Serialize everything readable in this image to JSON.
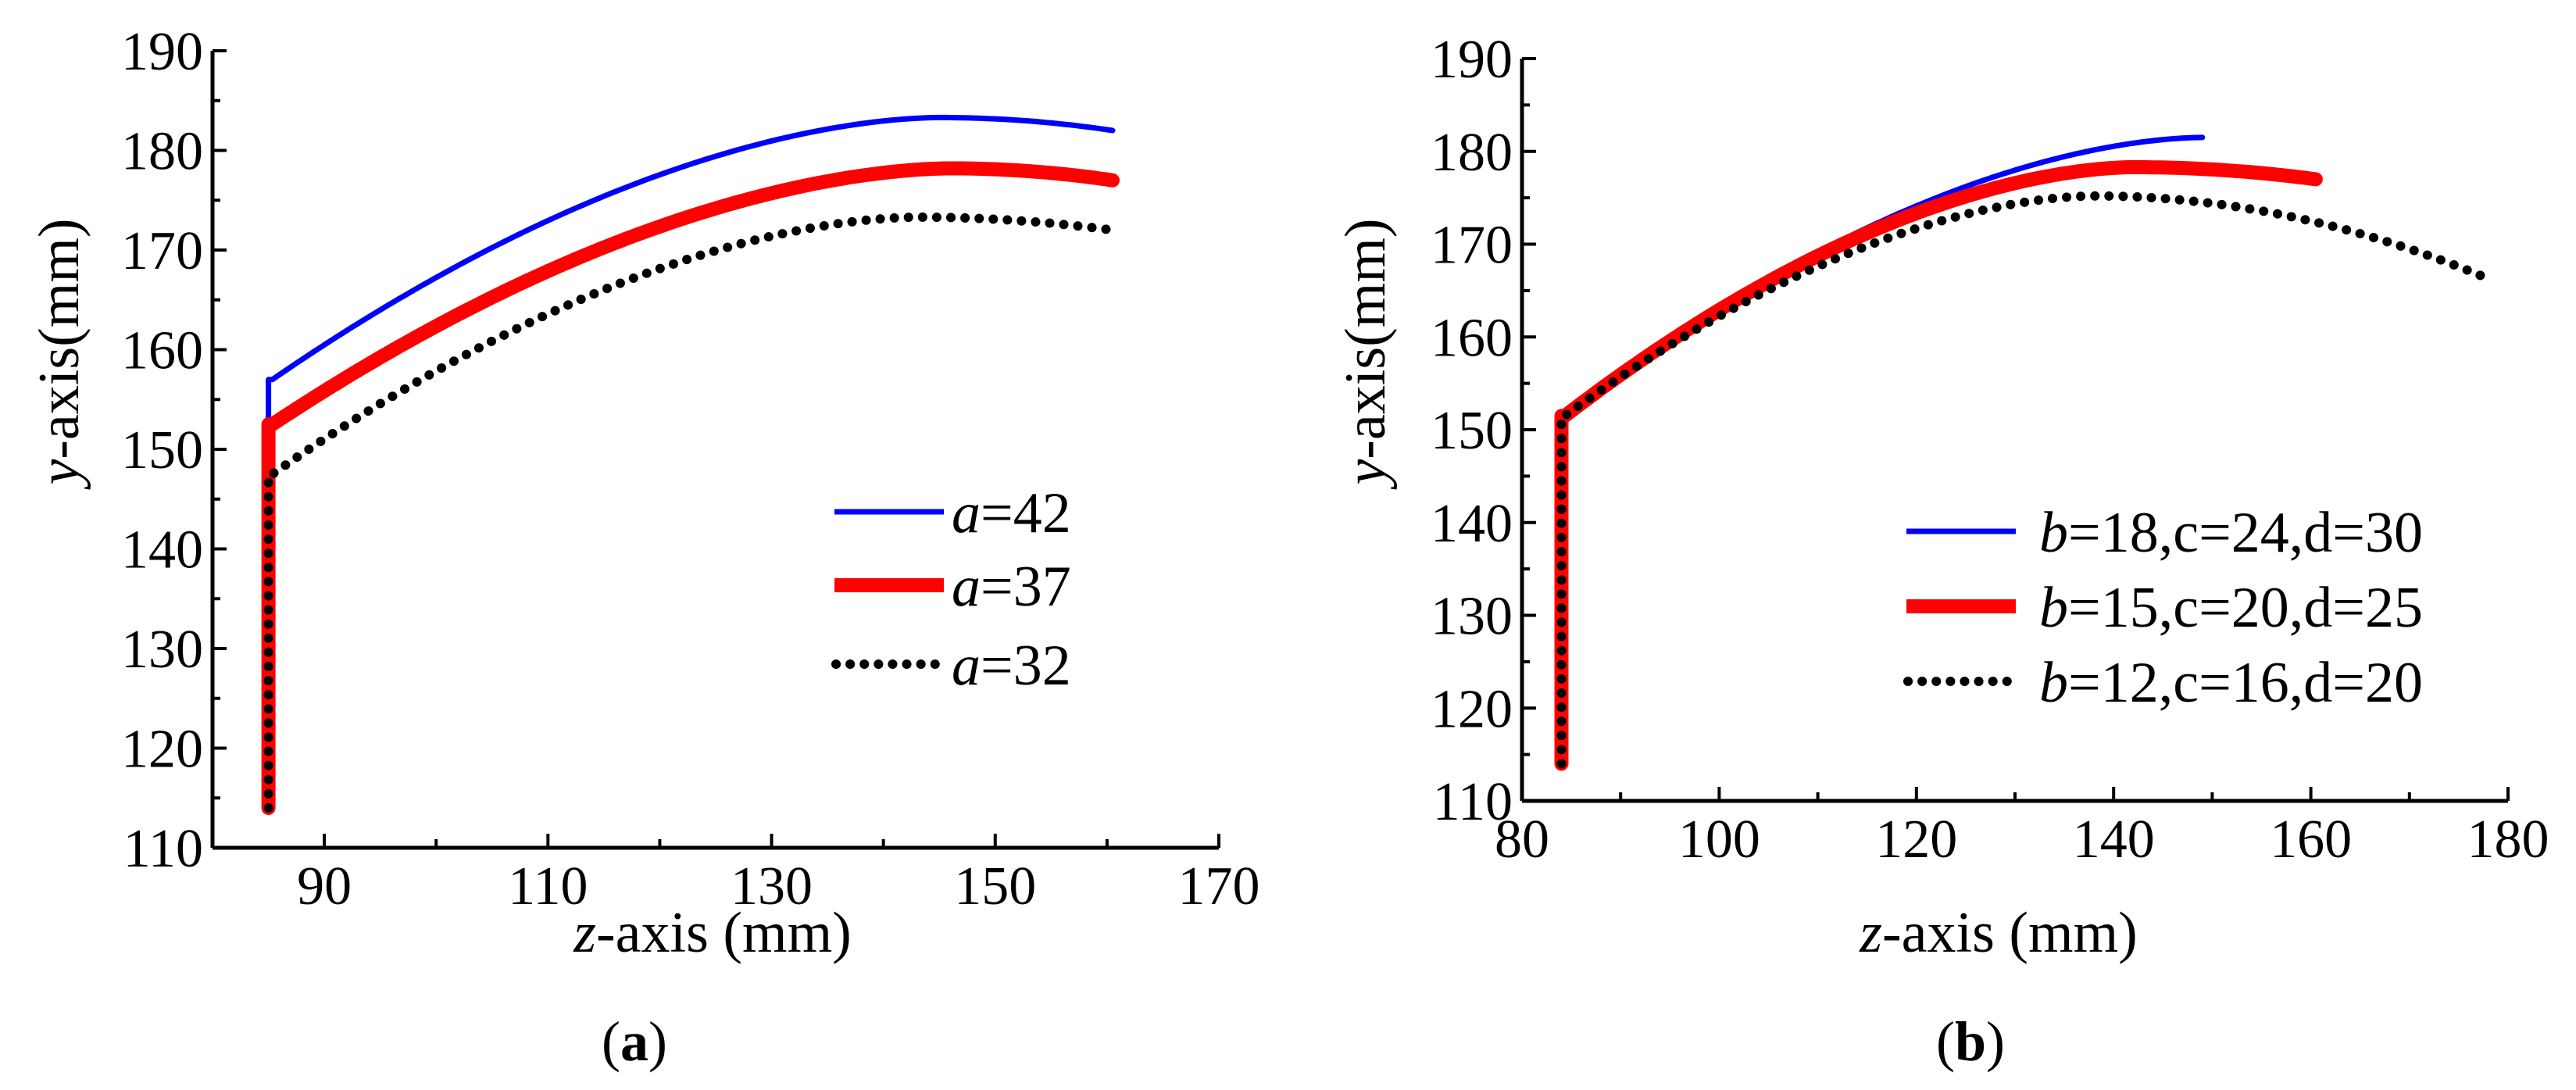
{
  "chart_data": [
    {
      "type": "line",
      "panel_label": "(a)",
      "panel_label_parts": {
        "open": "(",
        "letter": "a",
        "close": ")"
      },
      "xlabel": {
        "var": "z",
        "rest": "-axis (mm)"
      },
      "ylabel": {
        "var": "y",
        "rest": "-axis(mm)"
      },
      "xlim": [
        80,
        170
      ],
      "ylim": [
        110,
        190
      ],
      "xticks": [
        90,
        110,
        130,
        150,
        170
      ],
      "yticks": [
        110,
        120,
        130,
        140,
        150,
        160,
        170,
        180,
        190
      ],
      "x_start": 85,
      "x_end": 160.5,
      "y_start": 114,
      "legend_position": "center-right",
      "series": [
        {
          "name": "a=42",
          "var": "a",
          "value_label": "=42",
          "color": "#0000ff",
          "style": "solid",
          "width": 7,
          "y_base": 157,
          "y_peak": 183.3,
          "x_peak": 145,
          "y_end": 182
        },
        {
          "name": "a=37",
          "var": "a",
          "value_label": "=37",
          "color": "#ff0000",
          "style": "solid",
          "width": 18,
          "y_base": 152.5,
          "y_peak": 178.2,
          "x_peak": 146,
          "y_end": 177
        },
        {
          "name": "a=32",
          "var": "a",
          "value_label": "=32",
          "color": "#000000",
          "style": "dotted",
          "width": 12,
          "y_base": 147.5,
          "y_peak": 173.3,
          "x_peak": 143,
          "y_end": 172
        }
      ]
    },
    {
      "type": "line",
      "panel_label": "(b)",
      "panel_label_parts": {
        "open": "(",
        "letter": "b",
        "close": ")"
      },
      "xlabel": {
        "var": "z",
        "rest": "-axis (mm)"
      },
      "ylabel": {
        "var": "y",
        "rest": "-axis(mm)"
      },
      "xlim": [
        80,
        180
      ],
      "ylim": [
        110,
        190
      ],
      "xticks": [
        80,
        100,
        120,
        140,
        160,
        180
      ],
      "yticks": [
        110,
        120,
        130,
        140,
        150,
        160,
        170,
        180,
        190
      ],
      "x_start": 84,
      "y_start": 114,
      "legend_position": "lower-right",
      "series": [
        {
          "name": "b=18,c=24,d=30",
          "var": "b",
          "value_label": "=18,c=24,d=30",
          "color": "#0000ff",
          "style": "solid",
          "width": 7,
          "y_base": 151.5,
          "x_peak": 149,
          "y_peak": 181.5,
          "x_end": 149,
          "y_end": 181.5
        },
        {
          "name": "b=15,c=20,d=25",
          "var": "b",
          "value_label": "=15,c=20,d=25",
          "color": "#ff0000",
          "style": "solid",
          "width": 18,
          "y_base": 151.5,
          "x_peak": 142,
          "y_peak": 178.3,
          "x_end": 160.5,
          "y_end": 177
        },
        {
          "name": "b=12,c=16,d=20",
          "var": "b",
          "value_label": "=12,c=16,d=20",
          "color": "#000000",
          "style": "dotted",
          "width": 12,
          "y_base": 151.5,
          "x_peak": 138,
          "y_peak": 175.2,
          "x_end": 177.5,
          "y_end": 166.5
        }
      ]
    }
  ]
}
